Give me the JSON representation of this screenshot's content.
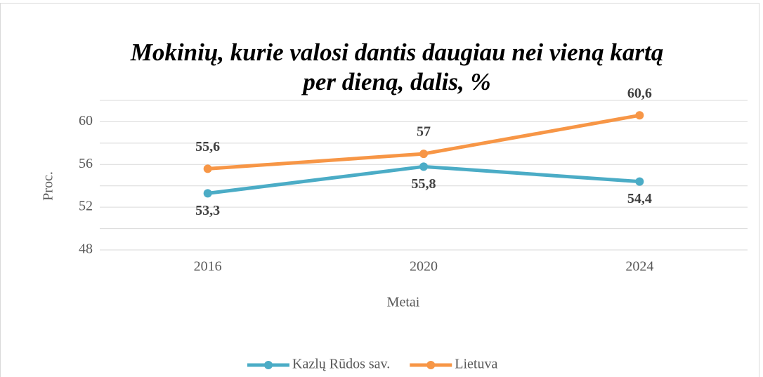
{
  "chart_data": {
    "type": "line",
    "title": "Mokinių, kurie valosi dantis daugiau nei vieną kartą",
    "subtitle": "per dieną, dalis, %",
    "x_label": "Metai",
    "y_label": "Proc.",
    "categories": [
      "2016",
      "2020",
      "2024"
    ],
    "series": [
      {
        "name": "Kazlų Rūdos sav.",
        "color": "#4bacc6",
        "values": [
          53.3,
          55.8,
          54.4
        ],
        "value_labels": [
          "53,3",
          "55,8",
          "54,4"
        ],
        "label_position": "below"
      },
      {
        "name": "Lietuva",
        "color": "#f79646",
        "values": [
          55.6,
          57,
          60.6
        ],
        "value_labels": [
          "55,6",
          "57",
          "60,6"
        ],
        "label_position": "above"
      }
    ],
    "ylim": [
      48,
      62
    ],
    "yticks": [
      48,
      52,
      56,
      60
    ],
    "yminor": [
      50,
      54,
      58,
      62
    ],
    "grid": true,
    "legend": "bottom"
  }
}
